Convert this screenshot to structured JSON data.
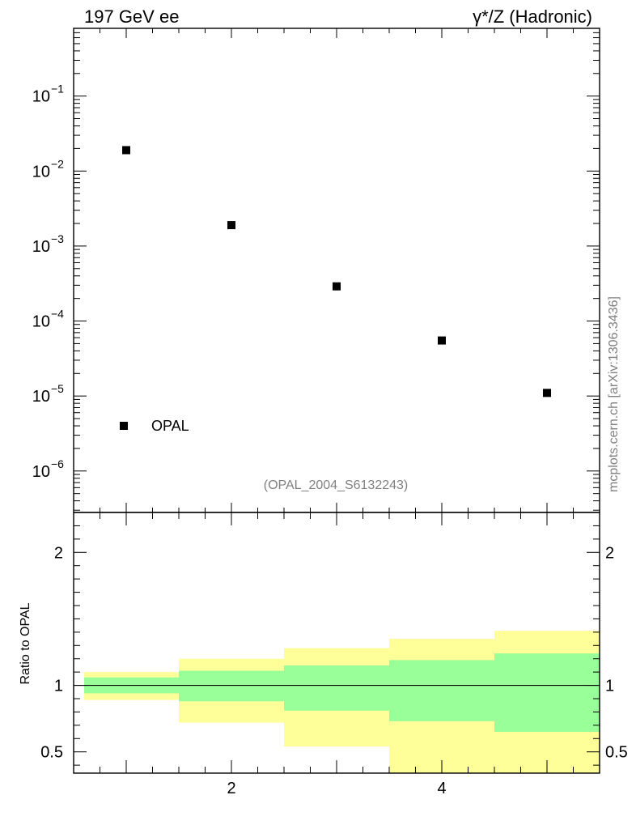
{
  "titles": {
    "left": "197 GeV ee",
    "right": "γ*/Z (Hadronic)"
  },
  "watermark": "(OPAL_2004_S6132243)",
  "credit": "mcplots.cern.ch [arXiv:1306.3436]",
  "colors": {
    "inner_band": "#99ff99",
    "outer_band": "#ffff99",
    "marker": "#000000"
  },
  "chart_data": [
    {
      "type": "scatter",
      "scale": "log",
      "xlim": [
        0.5,
        5.5
      ],
      "ylim": [
        2.8e-07,
        0.8
      ],
      "y_ticks": [
        {
          "value": 1e-06,
          "base": "10",
          "exp": "−6"
        },
        {
          "value": 1e-05,
          "base": "10",
          "exp": "−5"
        },
        {
          "value": 0.0001,
          "base": "10",
          "exp": "−4"
        },
        {
          "value": 0.001,
          "base": "10",
          "exp": "−3"
        },
        {
          "value": 0.01,
          "base": "10",
          "exp": "−2"
        },
        {
          "value": 0.1,
          "base": "10",
          "exp": "−1"
        }
      ],
      "series": [
        {
          "name": "OPAL",
          "x": [
            1,
            2,
            3,
            4,
            5
          ],
          "y": [
            0.019,
            0.0019,
            0.00029,
            5.5e-05,
            1.1e-05
          ]
        }
      ],
      "legend": "bottom-left"
    },
    {
      "type": "area",
      "ylabel": "Ratio to OPAL",
      "xlim": [
        0.5,
        5.5
      ],
      "ylim": [
        0.34,
        2.3
      ],
      "x_ticks": [
        {
          "value": 2,
          "label": "2"
        },
        {
          "value": 4,
          "label": "4"
        }
      ],
      "y_ticks": [
        {
          "value": 0.5,
          "label": "0.5"
        },
        {
          "value": 1,
          "label": "1"
        },
        {
          "value": 2,
          "label": "2"
        }
      ],
      "reference_line": 1,
      "bins": [
        {
          "lo": 0.6,
          "hi": 1.5,
          "inner": [
            0.94,
            1.06
          ],
          "outer": [
            0.89,
            1.1
          ]
        },
        {
          "lo": 1.5,
          "hi": 2.5,
          "inner": [
            0.88,
            1.11
          ],
          "outer": [
            0.72,
            1.2
          ]
        },
        {
          "lo": 2.5,
          "hi": 3.5,
          "inner": [
            0.81,
            1.15
          ],
          "outer": [
            0.54,
            1.28
          ]
        },
        {
          "lo": 3.5,
          "hi": 4.5,
          "inner": [
            0.73,
            1.19
          ],
          "outer": [
            0.33,
            1.35
          ]
        },
        {
          "lo": 4.5,
          "hi": 5.5,
          "inner": [
            0.65,
            1.24
          ],
          "outer": [
            0.33,
            1.41
          ]
        }
      ]
    }
  ]
}
